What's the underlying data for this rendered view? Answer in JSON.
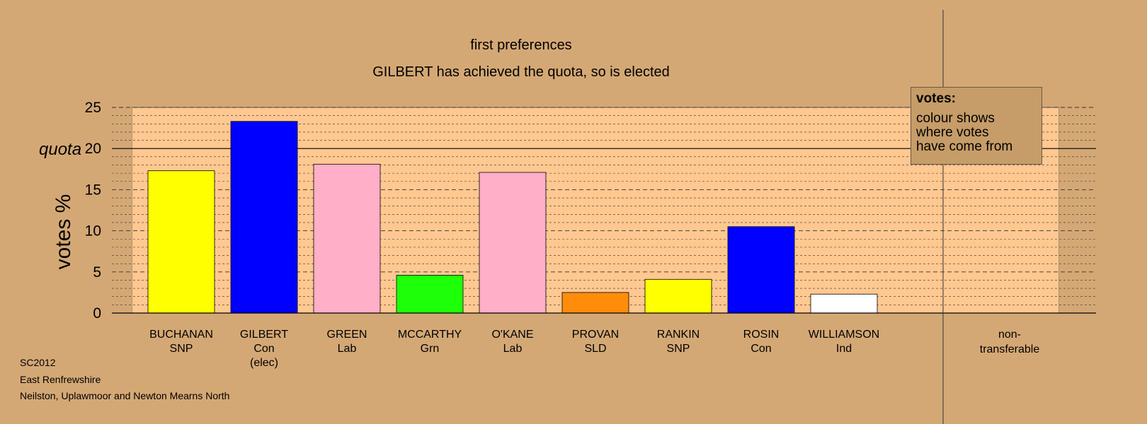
{
  "chart_data": {
    "type": "bar",
    "title": "first preferences",
    "subtitle": "GILBERT has achieved the quota, so is elected",
    "ylabel": "votes %",
    "ylim": [
      0,
      25
    ],
    "yticks": [
      0,
      5,
      10,
      15,
      20,
      25
    ],
    "quota": 20,
    "quota_label": "quota",
    "grid": true,
    "categories": [
      {
        "name": "BUCHANAN",
        "party": "SNP",
        "note": ""
      },
      {
        "name": "GILBERT",
        "party": "Con",
        "note": "(elec)"
      },
      {
        "name": "GREEN",
        "party": "Lab",
        "note": ""
      },
      {
        "name": "MCCARTHY",
        "party": "Grn",
        "note": ""
      },
      {
        "name": "O'KANE",
        "party": "Lab",
        "note": ""
      },
      {
        "name": "PROVAN",
        "party": "SLD",
        "note": ""
      },
      {
        "name": "RANKIN",
        "party": "SNP",
        "note": ""
      },
      {
        "name": "ROSIN",
        "party": "Con",
        "note": ""
      },
      {
        "name": "WILLIAMSON",
        "party": "Ind",
        "note": ""
      }
    ],
    "values": [
      17.3,
      23.3,
      18.1,
      4.6,
      17.1,
      2.5,
      4.1,
      10.5,
      2.3
    ],
    "colors": [
      "#ffff00",
      "#0000ff",
      "#ffafc8",
      "#1eff0a",
      "#ffafc8",
      "#ff8c0a",
      "#ffff00",
      "#0000ff",
      "#ffffff"
    ],
    "nontransferable_label_line1": "non-",
    "nontransferable_label_line2": "transferable"
  },
  "legend": {
    "title": "votes:",
    "line1": "colour shows",
    "line2": "where votes",
    "line3": "have come from"
  },
  "footer": {
    "election": "SC2012",
    "council": "East Renfrewshire",
    "ward": "Neilston, Uplawmoor and Newton Mearns North"
  },
  "colors": {
    "background": "#d4a875",
    "plot_background": "#ffc891"
  }
}
